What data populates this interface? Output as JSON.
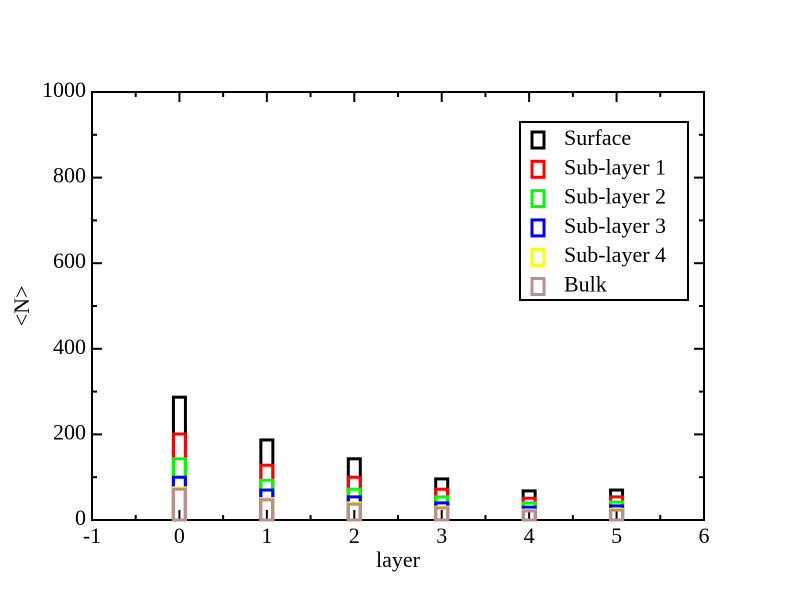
{
  "chart_data": {
    "type": "bar",
    "xlabel": "layer",
    "ylabel": "<N>",
    "x": [
      0,
      1,
      2,
      3,
      4,
      5
    ],
    "series": [
      {
        "name": "Surface",
        "color": "#000000",
        "values": [
          287,
          187,
          143,
          96,
          68,
          70
        ]
      },
      {
        "name": "Sub-layer 1",
        "color": "#ff0000",
        "values": [
          201,
          128,
          100,
          72,
          51,
          54
        ]
      },
      {
        "name": "Sub-layer 2",
        "color": "#00ff00",
        "values": [
          143,
          93,
          72,
          54,
          40,
          42
        ]
      },
      {
        "name": "Sub-layer 3",
        "color": "#0000ff",
        "values": [
          100,
          70,
          54,
          40,
          30,
          33
        ]
      },
      {
        "name": "Sub-layer 4",
        "color": "#ffff00",
        "values": [
          75,
          50,
          40,
          30,
          23,
          25
        ]
      },
      {
        "name": "Bulk",
        "color": "#bc8f8f",
        "values": [
          72,
          47,
          37,
          28,
          21,
          23
        ]
      }
    ],
    "xlim": [
      -1,
      6
    ],
    "xticks": [
      -1,
      0,
      1,
      2,
      3,
      4,
      5,
      6
    ],
    "ylim": [
      0,
      1000
    ],
    "yticks": [
      0,
      200,
      400,
      600,
      800,
      1000
    ],
    "minor_ticks": true,
    "legend": "upper right"
  }
}
